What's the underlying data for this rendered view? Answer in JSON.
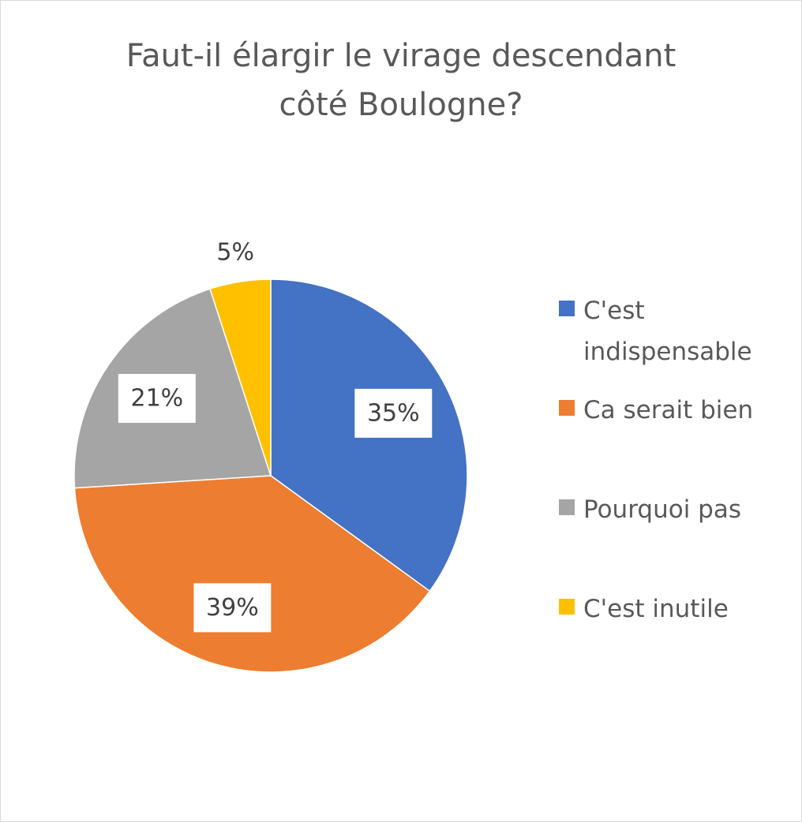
{
  "chart_data": {
    "type": "pie",
    "title": "Faut-il élargir le virage descendant côté Boulogne?",
    "title_lines": [
      "Faut-il élargir le virage descendant",
      "côté Boulogne?"
    ],
    "categories": [
      "C'est indispensable",
      "Ca serait bien",
      "Pourquoi pas",
      "C'est inutile"
    ],
    "values": [
      35,
      39,
      21,
      5
    ],
    "data_labels": [
      "35%",
      "39%",
      "21%",
      "5%"
    ],
    "colors": [
      "#4472c4",
      "#ed7d31",
      "#a5a5a5",
      "#ffc000"
    ],
    "legend_position": "right"
  }
}
